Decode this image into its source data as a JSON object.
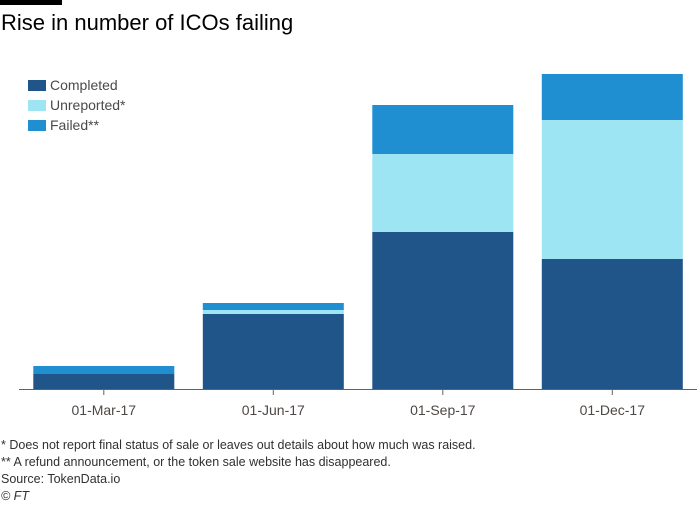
{
  "title": "Rise in number of ICOs failing",
  "colors": {
    "completed": "#20558a",
    "unreported": "#9ee5f4",
    "failed": "#1f8fd2",
    "axis": "#66605c",
    "tick_text": "#4d4845"
  },
  "legend": [
    {
      "label": "Completed",
      "color": "#20558a"
    },
    {
      "label": "Unreported*",
      "color": "#9ee5f4"
    },
    {
      "label": "Failed**",
      "color": "#1f8fd2"
    }
  ],
  "notes": {
    "note1": "* Does not report final status of sale or leaves out details about how much was raised.",
    "note2": "** A refund announcement, or the token sale website has disappeared.",
    "source": "Source: TokenData.io",
    "credit": "© FT"
  },
  "chart_data": {
    "type": "bar",
    "stacked": true,
    "categories": [
      "01-Mar-17",
      "01-Jun-17",
      "01-Sep-17",
      "01-Dec-17"
    ],
    "series": [
      {
        "name": "Completed",
        "values": [
          15,
          75,
          157,
          130
        ]
      },
      {
        "name": "Unreported*",
        "values": [
          0,
          4,
          78,
          139
        ]
      },
      {
        "name": "Failed**",
        "values": [
          8,
          7,
          49,
          46
        ]
      }
    ],
    "title": "Rise in number of ICOs failing",
    "ylim": [
      0,
      315
    ],
    "grid": false,
    "legend": "top-left"
  }
}
